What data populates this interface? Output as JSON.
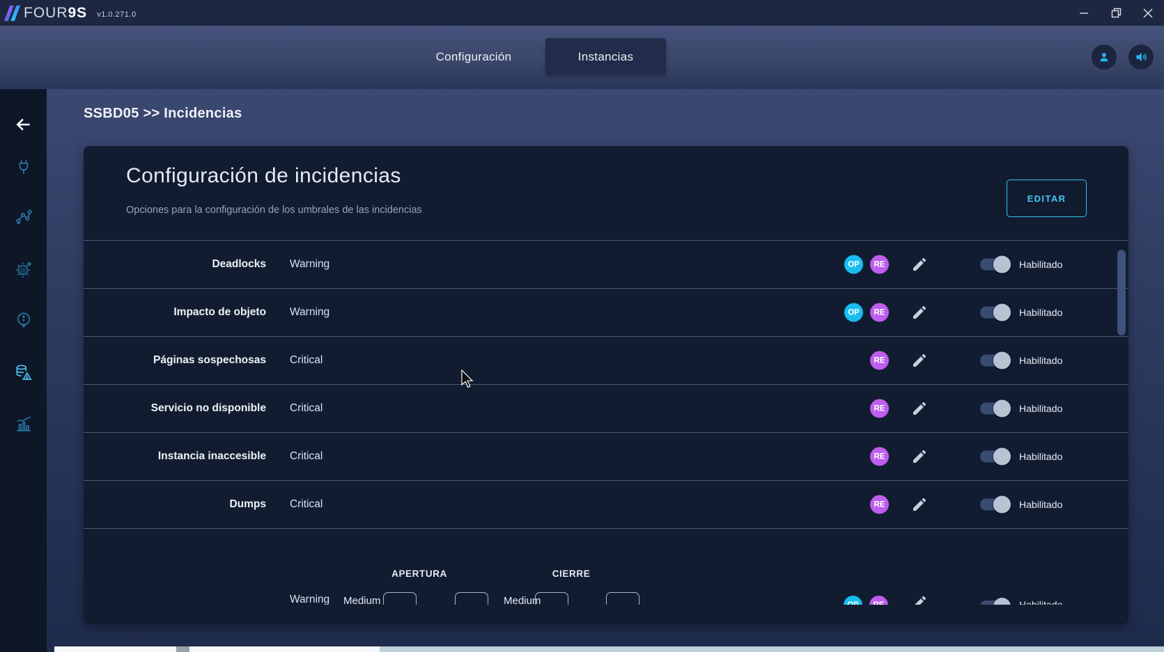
{
  "titlebar": {
    "logo_text_light": "FOUR",
    "logo_text_bold": "9S",
    "version": "v1.0.271.0"
  },
  "nav": {
    "tabs": [
      {
        "id": "configuracion",
        "label": "Configuración",
        "active": false
      },
      {
        "id": "instancias",
        "label": "Instancias",
        "active": true
      }
    ]
  },
  "breadcrumb": "SSBD05 >> Incidencias",
  "sidebar": {
    "icons": [
      "back-arrow",
      "plug",
      "topology",
      "gear-settings",
      "info",
      "database-alert",
      "statistics"
    ],
    "active_icon": "database-alert"
  },
  "card": {
    "title": "Configuración de incidencias",
    "subtitle": "Opciones para la configuración de los umbrales de las incidencias",
    "edit_button_label": "EDITAR",
    "enabled_label": "Habilitado",
    "badge_labels": {
      "op": "OP",
      "re": "RE"
    },
    "rows": [
      {
        "name": "Deadlocks",
        "severity": "Warning",
        "badges": [
          "OP",
          "RE"
        ],
        "enabled": true
      },
      {
        "name": "Impacto de objeto",
        "severity": "Warning",
        "badges": [
          "OP",
          "RE"
        ],
        "enabled": true
      },
      {
        "name": "Páginas sospechosas",
        "severity": "Critical",
        "badges": [
          "RE"
        ],
        "enabled": true
      },
      {
        "name": "Servicio no disponible",
        "severity": "Critical",
        "badges": [
          "RE"
        ],
        "enabled": true
      },
      {
        "name": "Instancia inaccesible",
        "severity": "Critical",
        "badges": [
          "RE"
        ],
        "enabled": true
      },
      {
        "name": "Dumps",
        "severity": "Critical",
        "badges": [
          "RE"
        ],
        "enabled": true
      }
    ],
    "partial_row": {
      "severity": "Warning",
      "apertura_label": "APERTURA",
      "cierre_label": "CIERRE",
      "threshold_select_1": "Medium",
      "threshold_select_2": "Medium",
      "inputs": [
        "",
        "",
        "",
        ""
      ],
      "badges": [
        "OP",
        "RE"
      ],
      "enabled": true
    }
  },
  "colors": {
    "accent_cyan": "#2cc5f5",
    "badge_op": "#18bdf0",
    "badge_re": "#c05ced",
    "card_bg": "#121c31",
    "sidebar_bg": "#0d1728",
    "titlebar_bg": "#1d2742",
    "toggle_track": "#3b4c72",
    "toggle_knob": "#b7c2d3"
  }
}
